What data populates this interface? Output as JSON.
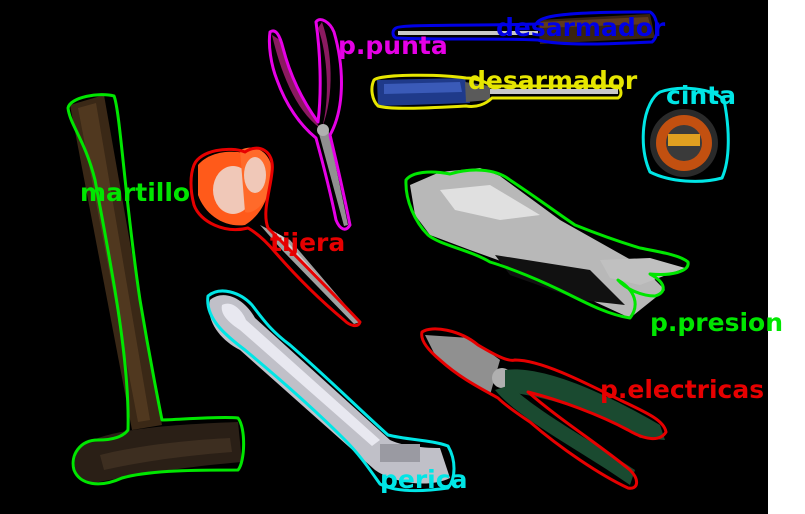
{
  "annotations": [
    {
      "id": "martillo",
      "label": "martillo",
      "color": "#00e600"
    },
    {
      "id": "p-punta",
      "label": "p.punta",
      "color": "#e600e6"
    },
    {
      "id": "desarmador-1",
      "label": "desarmador",
      "color": "#0000e6"
    },
    {
      "id": "desarmador-2",
      "label": "desarmador",
      "color": "#e6e600"
    },
    {
      "id": "cinta",
      "label": "cinta",
      "color": "#00e6e6"
    },
    {
      "id": "tijera",
      "label": "tijera",
      "color": "#e60000"
    },
    {
      "id": "p-presion",
      "label": "p.presion",
      "color": "#00e600"
    },
    {
      "id": "perica",
      "label": "perica",
      "color": "#00e6e6"
    },
    {
      "id": "p-electricas",
      "label": "p.electricas",
      "color": "#e60000"
    }
  ],
  "colors": {
    "background": "#000000",
    "canvas": "#ffffff",
    "green": "#00e600",
    "magenta": "#e600e6",
    "blue": "#0000e6",
    "yellow": "#e6e600",
    "cyan": "#00e6e6",
    "red": "#e60000"
  }
}
